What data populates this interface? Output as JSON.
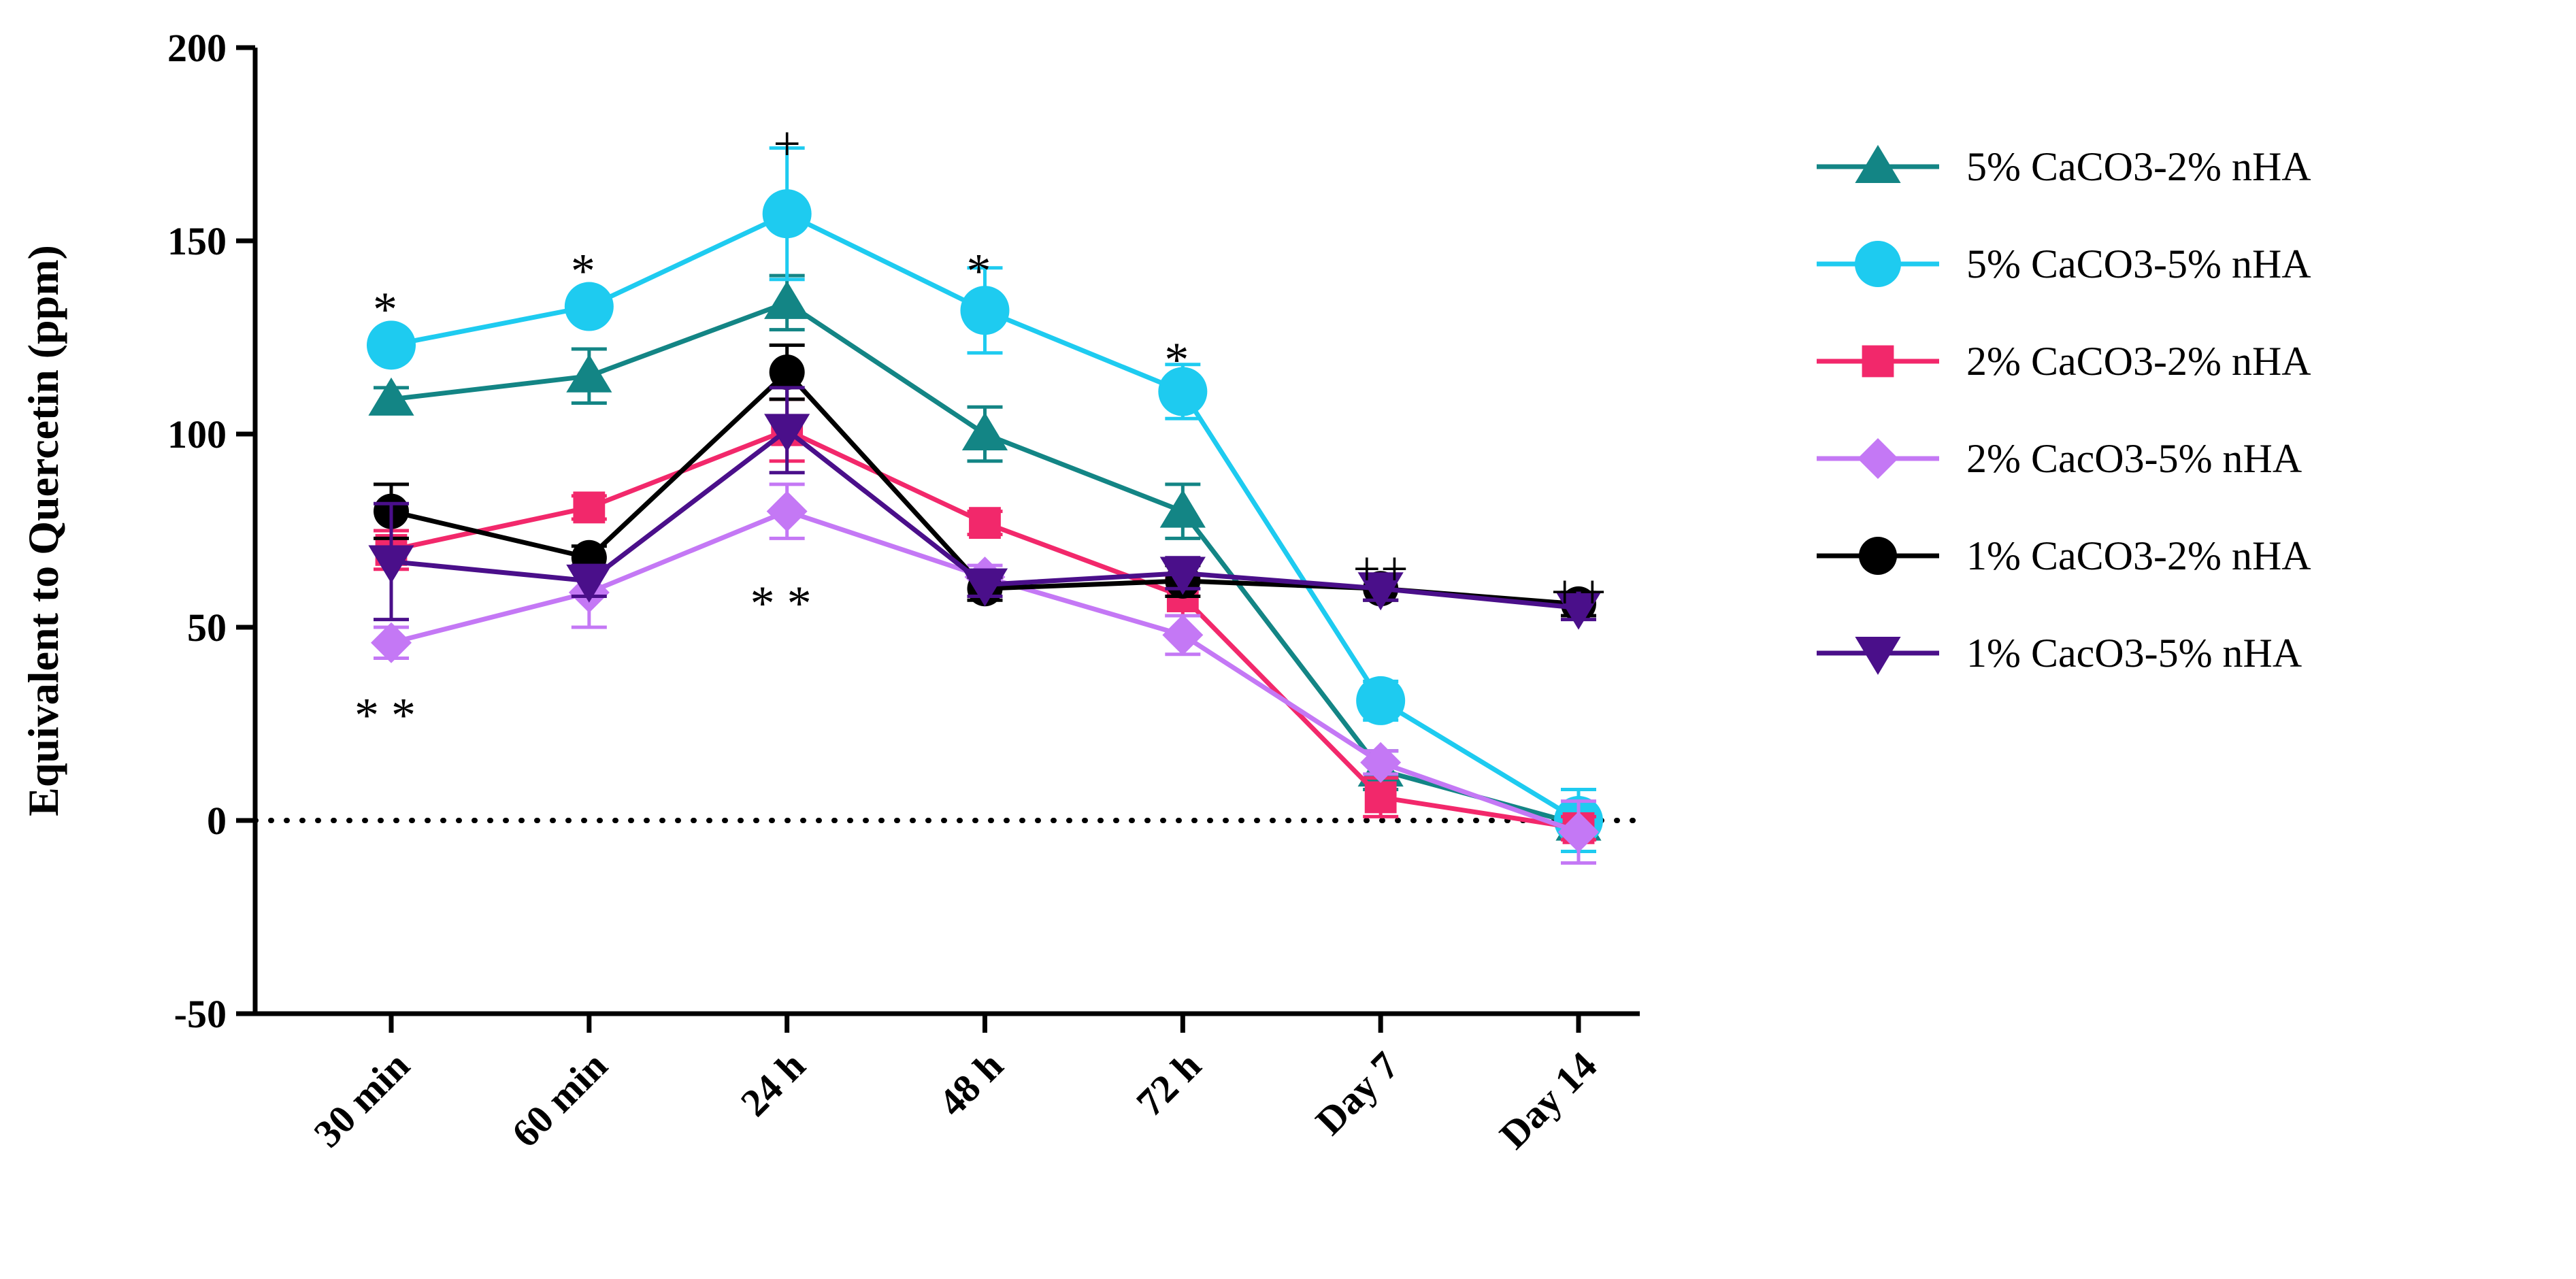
{
  "chart_data": {
    "type": "line",
    "ylabel": "Equivalent to Quercetin (ppm)",
    "xlabel": "",
    "categories": [
      "30 min",
      "60 min",
      "24 h",
      "48 h",
      "72 h",
      "Day 7",
      "Day 14"
    ],
    "ylim": [
      -50,
      200
    ],
    "yticks": [
      -50,
      0,
      50,
      100,
      150,
      200
    ],
    "reference_line": {
      "y": 0,
      "style": "dotted"
    },
    "legend_position": "right",
    "series": [
      {
        "name": "5% CaCO3-2% nHA",
        "color": "#138585",
        "marker": "triangle-up",
        "values": [
          109,
          115,
          134,
          100,
          80,
          13,
          -1
        ],
        "errors": [
          3,
          7,
          7,
          7,
          7,
          5,
          3
        ]
      },
      {
        "name": "5% CaCO3-5% nHA",
        "color": "#1ECBF0",
        "marker": "circle",
        "values": [
          123,
          133,
          157,
          132,
          111,
          31,
          0
        ],
        "errors": [
          3,
          3,
          17,
          11,
          7,
          5,
          8
        ]
      },
      {
        "name": "2% CaCO3-2% nHA",
        "color": "#F2286B",
        "marker": "square",
        "values": [
          70,
          81,
          101,
          77,
          58,
          6,
          -2
        ],
        "errors": [
          5,
          3,
          8,
          3,
          5,
          5,
          3
        ]
      },
      {
        "name": "2% CacO3-5% nHA",
        "color": "#C478F5",
        "marker": "diamond",
        "values": [
          46,
          59,
          80,
          63,
          48,
          15,
          -3
        ],
        "errors": [
          4,
          9,
          7,
          3,
          5,
          3,
          8
        ]
      },
      {
        "name": "1% CaCO3-2% nHA",
        "color": "#000000",
        "marker": "circle",
        "values": [
          80,
          68,
          116,
          60,
          62,
          60,
          56
        ],
        "errors": [
          7,
          3,
          7,
          3,
          4,
          3,
          3
        ]
      },
      {
        "name": "1% CacO3-5% nHA",
        "color": "#4A0F8A",
        "marker": "triangle-down",
        "values": [
          67,
          62,
          101,
          61,
          64,
          60,
          55
        ],
        "errors": [
          15,
          4,
          11,
          3,
          4,
          3,
          3
        ]
      }
    ],
    "annotations": [
      {
        "text": "*",
        "x": "30 min",
        "y": 135
      },
      {
        "text": "**",
        "x": "30 min",
        "y": 30
      },
      {
        "text": "*",
        "x": "60 min",
        "y": 145
      },
      {
        "text": "+",
        "x": "24 h",
        "y": 178
      },
      {
        "text": "**",
        "x": "24 h",
        "y": 59
      },
      {
        "text": "*",
        "x": "48 h",
        "y": 145
      },
      {
        "text": "*",
        "x": "72 h",
        "y": 122
      },
      {
        "text": "++",
        "x": "Day 7",
        "y": 68
      },
      {
        "text": "++",
        "x": "Day 14",
        "y": 62
      }
    ]
  }
}
